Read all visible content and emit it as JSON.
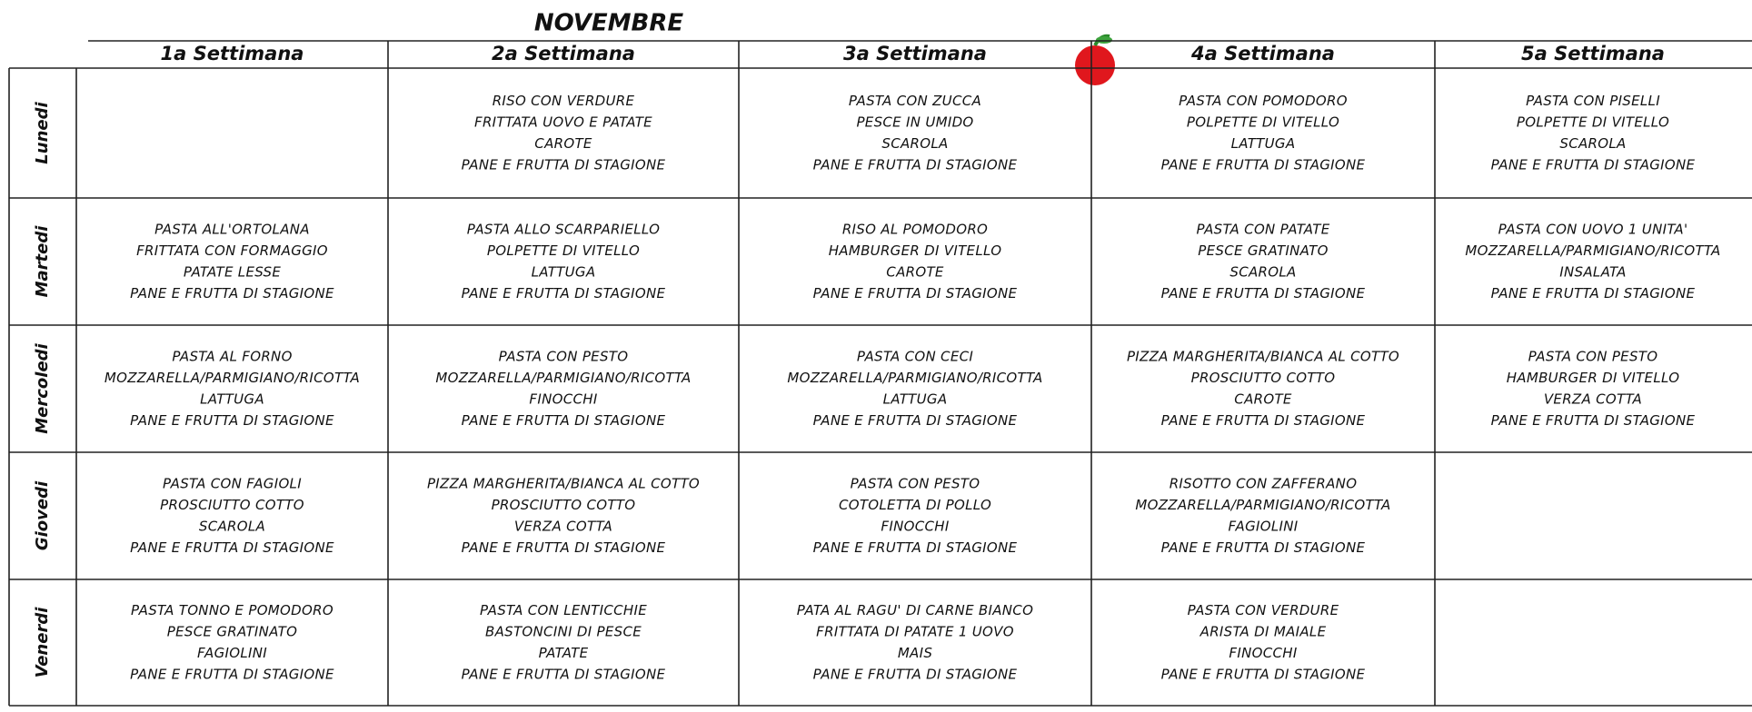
{
  "title": "NOVEMBRE",
  "header": {
    "columns": [
      "1a Settimana",
      "2a Settimana",
      "3a Settimana",
      "4a Settimana",
      "5a Settimana"
    ]
  },
  "rows": [
    {
      "day": "Lunedi",
      "cells": [
        [],
        [
          "RISO CON VERDURE",
          "FRITTATA UOVO E PATATE",
          "CAROTE",
          "PANE E FRUTTA DI STAGIONE"
        ],
        [
          "PASTA CON ZUCCA",
          "PESCE IN UMIDO",
          "SCAROLA",
          "PANE E FRUTTA DI STAGIONE"
        ],
        [
          "PASTA CON POMODORO",
          "POLPETTE DI VITELLO",
          "LATTUGA",
          "PANE E FRUTTA DI STAGIONE"
        ],
        [
          "PASTA CON PISELLI",
          "POLPETTE DI VITELLO",
          "SCAROLA",
          "PANE E FRUTTA DI STAGIONE"
        ]
      ]
    },
    {
      "day": "Martedi",
      "cells": [
        [
          "PASTA ALL'ORTOLANA",
          "FRITTATA CON FORMAGGIO",
          "PATATE LESSE",
          "PANE E FRUTTA DI STAGIONE"
        ],
        [
          "PASTA ALLO SCARPARIELLO",
          "POLPETTE DI VITELLO",
          "LATTUGA",
          "PANE E FRUTTA DI STAGIONE"
        ],
        [
          "RISO AL POMODORO",
          "HAMBURGER DI VITELLO",
          "CAROTE",
          "PANE E FRUTTA DI STAGIONE"
        ],
        [
          "PASTA CON PATATE",
          "PESCE GRATINATO",
          "SCAROLA",
          "PANE E FRUTTA DI STAGIONE"
        ],
        [
          "PASTA CON UOVO 1 UNITA'",
          "MOZZARELLA/PARMIGIANO/RICOTTA",
          "INSALATA",
          "PANE E FRUTTA DI STAGIONE"
        ]
      ]
    },
    {
      "day": "Mercoledi",
      "cells": [
        [
          "PASTA AL FORNO",
          "MOZZARELLA/PARMIGIANO/RICOTTA",
          "LATTUGA",
          "PANE E FRUTTA DI STAGIONE"
        ],
        [
          "PASTA CON PESTO",
          "MOZZARELLA/PARMIGIANO/RICOTTA",
          "FINOCCHI",
          "PANE E FRUTTA DI STAGIONE"
        ],
        [
          "PASTA CON CECI",
          "MOZZARELLA/PARMIGIANO/RICOTTA",
          "LATTUGA",
          "PANE E FRUTTA DI STAGIONE"
        ],
        [
          "PIZZA MARGHERITA/BIANCA AL COTTO",
          "PROSCIUTTO COTTO",
          "CAROTE",
          "PANE E FRUTTA DI STAGIONE"
        ],
        [
          "PASTA CON PESTO",
          "HAMBURGER DI VITELLO",
          "VERZA COTTA",
          "PANE E FRUTTA DI STAGIONE"
        ]
      ]
    },
    {
      "day": "Giovedi",
      "cells": [
        [
          "PASTA CON FAGIOLI",
          "PROSCIUTTO COTTO",
          "SCAROLA",
          "PANE E FRUTTA DI STAGIONE"
        ],
        [
          "PIZZA MARGHERITA/BIANCA AL COTTO",
          "PROSCIUTTO COTTO",
          "VERZA COTTA",
          "PANE E FRUTTA DI STAGIONE"
        ],
        [
          "PASTA CON PESTO",
          "COTOLETTA DI POLLO",
          "FINOCCHI",
          "PANE E FRUTTA DI STAGIONE"
        ],
        [
          "RISOTTO CON ZAFFERANO",
          "MOZZARELLA/PARMIGIANO/RICOTTA",
          "FAGIOLINI",
          "PANE E FRUTTA DI STAGIONE"
        ],
        []
      ]
    },
    {
      "day": "Venerdi",
      "cells": [
        [
          "PASTA TONNO E POMODORO",
          "PESCE GRATINATO",
          "FAGIOLINI",
          "PANE E FRUTTA DI STAGIONE"
        ],
        [
          "PASTA CON LENTICCHIE",
          "BASTONCINI DI PESCE",
          "PATATE",
          "PANE E FRUTTA DI STAGIONE"
        ],
        [
          "PATA AL RAGU' DI CARNE BIANCO",
          "FRITTATA DI PATATE 1 UOVO",
          "MAIS",
          "PANE E FRUTTA DI STAGIONE"
        ],
        [
          "PASTA CON VERDURE",
          "ARISTA DI MAIALE",
          "FINOCCHI",
          "PANE E FRUTTA DI STAGIONE"
        ],
        []
      ]
    }
  ]
}
